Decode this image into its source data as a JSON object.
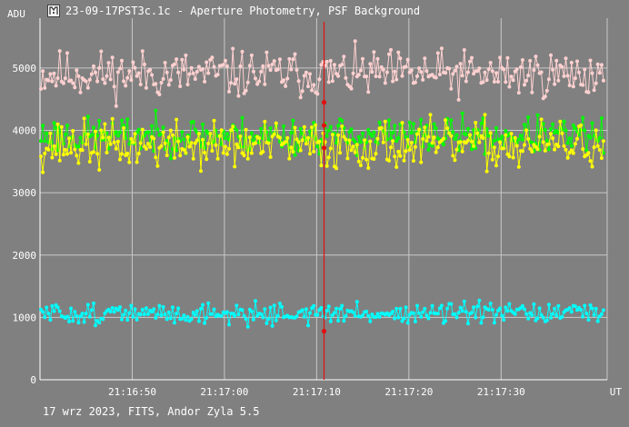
{
  "title": "23-09-17PST3c.1c - Aperture Photometry, PSF Background",
  "y_unit": "ADU",
  "x_unit": "UT",
  "footer": "17 wrz 2023, FITS, Andor Zyla 5.5",
  "icon": "app-logo-icon",
  "colors": {
    "background": "#808080",
    "grid": "#c8c8c8",
    "axis": "#ffffff",
    "cursor": "#e01010"
  },
  "chart_data": {
    "type": "line",
    "title": "23-09-17PST3c.1c - Aperture Photometry, PSF Background",
    "xlabel": "UT",
    "ylabel": "ADU",
    "ylim": [
      0,
      5800
    ],
    "y_ticks": [
      0,
      1000,
      2000,
      3000,
      4000,
      5000
    ],
    "x_ticks": [
      "21:16:50",
      "21:17:00",
      "21:17:10",
      "21:17:20",
      "21:17:30"
    ],
    "x_tick_seconds": [
      50,
      60,
      70,
      80,
      90
    ],
    "xlim_seconds": [
      40,
      101.5
    ],
    "cursor_time_seconds": 70.8,
    "grid": true,
    "n_points": 300,
    "series": [
      {
        "color": "#ffd0d0",
        "mean": 4900,
        "amplitude": 430,
        "seed": 11,
        "cursor_value": 4450
      },
      {
        "color": "#00ff00",
        "mean": 3920,
        "amplitude": 330,
        "seed": 23,
        "cursor_value": 4080
      },
      {
        "color": "#ffff00",
        "mean": 3760,
        "amplitude": 440,
        "seed": 37,
        "cursor_value": 3720
      },
      {
        "color": "#00ffff",
        "mean": 1060,
        "amplitude": 190,
        "seed": 51,
        "cursor_value": 780
      }
    ]
  }
}
